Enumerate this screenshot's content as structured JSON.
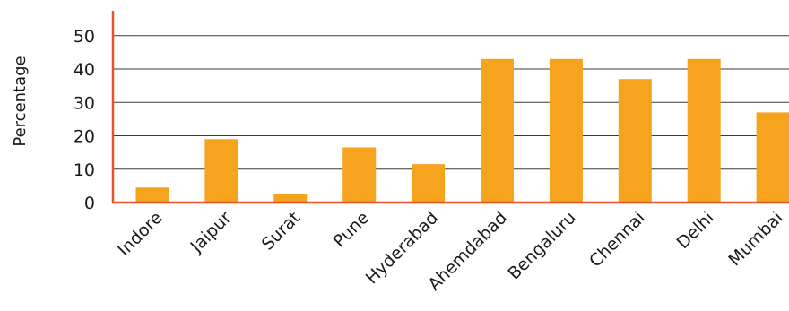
{
  "chart_data": {
    "type": "bar",
    "title": "",
    "xlabel": "",
    "ylabel": "Percentage",
    "ylim": [
      0,
      50
    ],
    "yticks": [
      0,
      10,
      20,
      30,
      40,
      50
    ],
    "grid": true,
    "legend": "none",
    "categories": [
      "Indore",
      "Jaipur",
      "Surat",
      "Pune",
      "Hyderabad",
      "Ahemdabad",
      "Bengaluru",
      "Chennai",
      "Delhi",
      "Mumbai"
    ],
    "values": [
      4.5,
      19,
      2.5,
      16.5,
      11.5,
      43,
      43,
      37,
      43,
      27
    ]
  },
  "colors": {
    "bar": "#f6a31e",
    "axis": "#e8542a",
    "grid": "#3a3a3a"
  }
}
